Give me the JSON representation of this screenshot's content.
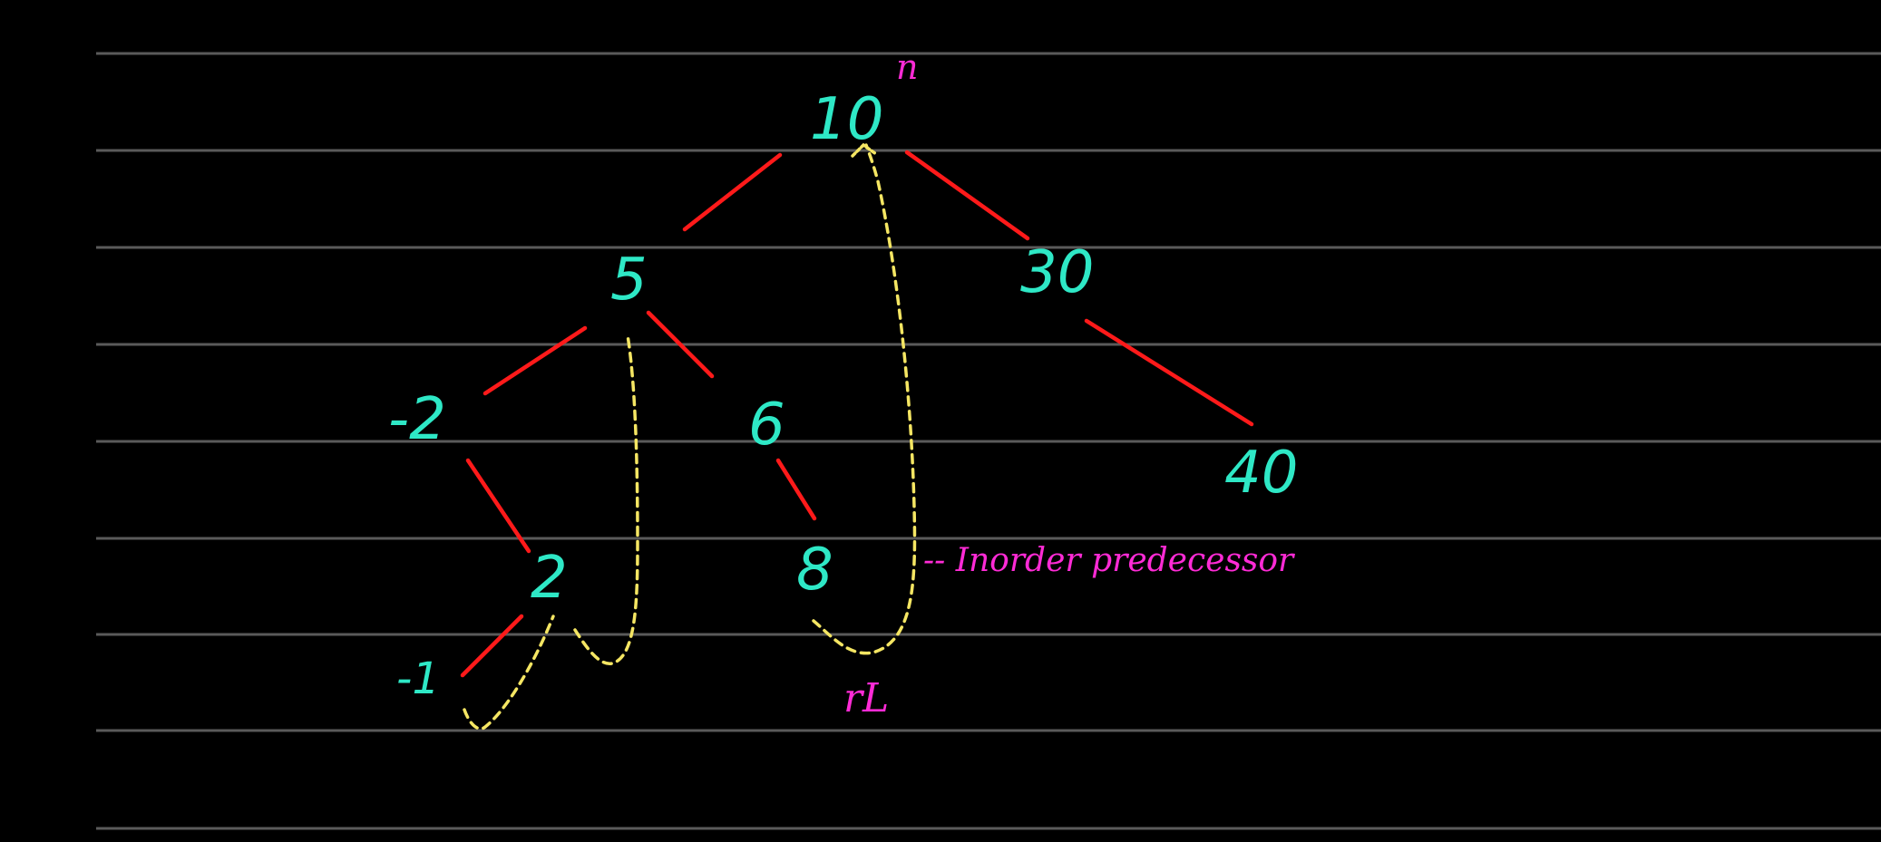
{
  "colors": {
    "background": "#000000",
    "ruled_line": "#5a5a5a",
    "node_text": "#2ee8c6",
    "edge": "#ff1a1a",
    "thread": "#f5e663",
    "annotation": "#ff2bd6"
  },
  "tree": {
    "nodes": [
      {
        "id": "n10",
        "label": "10"
      },
      {
        "id": "n5",
        "label": "5"
      },
      {
        "id": "n30",
        "label": "30"
      },
      {
        "id": "nm2",
        "label": "-2"
      },
      {
        "id": "n6",
        "label": "6"
      },
      {
        "id": "n40",
        "label": "40"
      },
      {
        "id": "n2",
        "label": "2"
      },
      {
        "id": "n8",
        "label": "8"
      },
      {
        "id": "nm1",
        "label": "-1"
      }
    ],
    "edges": [
      {
        "from": "n10",
        "to": "n5"
      },
      {
        "from": "n10",
        "to": "n30"
      },
      {
        "from": "n5",
        "to": "nm2"
      },
      {
        "from": "n5",
        "to": "n6"
      },
      {
        "from": "n30",
        "to": "n40"
      },
      {
        "from": "nm2",
        "to": "n2"
      },
      {
        "from": "n6",
        "to": "n8"
      },
      {
        "from": "n2",
        "to": "nm1"
      }
    ],
    "threads": [
      {
        "from": "nm1",
        "to": "n2"
      },
      {
        "from": "n2",
        "to": "n5"
      },
      {
        "from": "n8",
        "to": "n10"
      }
    ]
  },
  "annotations": {
    "root_marker": "n",
    "pred_marker": "rL",
    "pred_label": "-- Inorder predecessor"
  }
}
